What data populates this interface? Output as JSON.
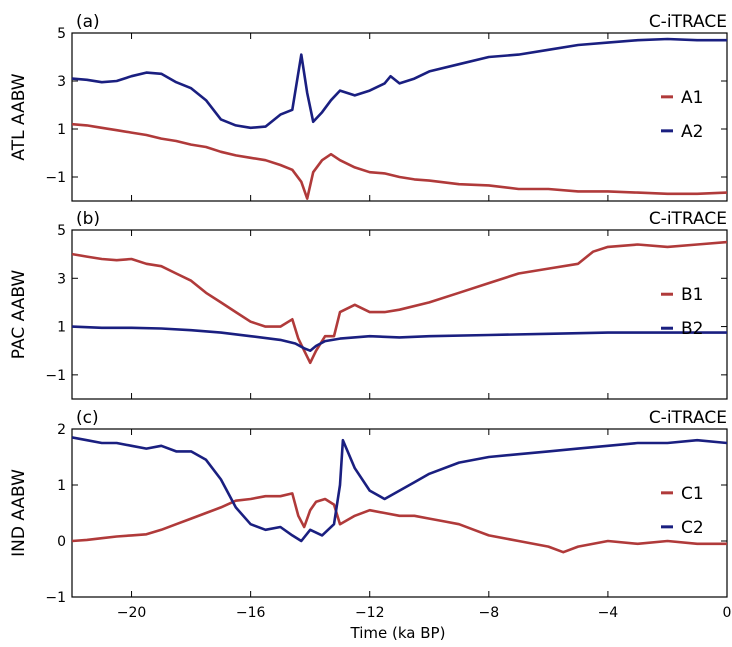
{
  "figure": {
    "xlabel": "Time (ka BP)",
    "xlim": [
      -22,
      0
    ],
    "xticks": [
      -20,
      -16,
      -12,
      -8,
      -4,
      0
    ],
    "xtick_labels": [
      "−20",
      "−16",
      "−12",
      "−8",
      "−4",
      "0"
    ]
  },
  "colors": {
    "red": "#b03a3a",
    "blue": "#1a1f80"
  },
  "chart_data": [
    {
      "type": "line",
      "panel_label": "(a)",
      "tag": "C-iTRACE",
      "ylabel": "ATL AABW",
      "ylim": [
        -2,
        5
      ],
      "yticks": [
        -1,
        1,
        3,
        5
      ],
      "ytick_labels": [
        "−1",
        "1",
        "3",
        "5"
      ],
      "legend_position": "right",
      "series": [
        {
          "name": "A1",
          "color": "red",
          "x": [
            -22,
            -21.5,
            -21,
            -20.5,
            -20,
            -19.5,
            -19,
            -18.5,
            -18,
            -17.5,
            -17,
            -16.5,
            -16,
            -15.5,
            -15,
            -14.6,
            -14.3,
            -14.1,
            -13.9,
            -13.6,
            -13.3,
            -13,
            -12.5,
            -12,
            -11.5,
            -11,
            -10.5,
            -10,
            -9,
            -8,
            -7,
            -6,
            -5,
            -4,
            -3,
            -2,
            -1,
            0
          ],
          "y": [
            1.2,
            1.15,
            1.05,
            0.95,
            0.85,
            0.75,
            0.6,
            0.5,
            0.35,
            0.25,
            0.05,
            -0.1,
            -0.2,
            -0.3,
            -0.5,
            -0.7,
            -1.2,
            -1.9,
            -0.8,
            -0.3,
            -0.05,
            -0.3,
            -0.6,
            -0.8,
            -0.85,
            -1.0,
            -1.1,
            -1.15,
            -1.3,
            -1.35,
            -1.5,
            -1.5,
            -1.6,
            -1.6,
            -1.65,
            -1.7,
            -1.7,
            -1.65
          ]
        },
        {
          "name": "A2",
          "color": "blue",
          "x": [
            -22,
            -21.5,
            -21,
            -20.5,
            -20,
            -19.5,
            -19,
            -18.5,
            -18,
            -17.5,
            -17,
            -16.5,
            -16,
            -15.5,
            -15,
            -14.6,
            -14.3,
            -14.1,
            -13.9,
            -13.6,
            -13.3,
            -13,
            -12.5,
            -12,
            -11.5,
            -11.3,
            -11,
            -10.5,
            -10,
            -9,
            -8,
            -7,
            -6,
            -5,
            -4,
            -3,
            -2,
            -1,
            0
          ],
          "y": [
            3.1,
            3.05,
            2.95,
            3.0,
            3.2,
            3.35,
            3.3,
            2.95,
            2.7,
            2.2,
            1.4,
            1.15,
            1.05,
            1.1,
            1.6,
            1.8,
            4.1,
            2.5,
            1.3,
            1.7,
            2.2,
            2.6,
            2.4,
            2.6,
            2.9,
            3.2,
            2.9,
            3.1,
            3.4,
            3.7,
            4.0,
            4.1,
            4.3,
            4.5,
            4.6,
            4.7,
            4.75,
            4.7,
            4.7
          ]
        }
      ]
    },
    {
      "type": "line",
      "panel_label": "(b)",
      "tag": "C-iTRACE",
      "ylabel": "PAC AABW",
      "ylim": [
        -2,
        5
      ],
      "yticks": [
        -1,
        1,
        3,
        5
      ],
      "ytick_labels": [
        "−1",
        "1",
        "3",
        "5"
      ],
      "legend_position": "right",
      "series": [
        {
          "name": "B1",
          "color": "red",
          "x": [
            -22,
            -21.5,
            -21,
            -20.5,
            -20,
            -19.5,
            -19,
            -18.5,
            -18,
            -17.5,
            -17,
            -16.5,
            -16,
            -15.5,
            -15,
            -14.6,
            -14.4,
            -14.2,
            -14.0,
            -13.8,
            -13.5,
            -13.2,
            -13,
            -12.5,
            -12,
            -11.5,
            -11,
            -10,
            -9,
            -8,
            -7,
            -6,
            -5,
            -4.5,
            -4,
            -3,
            -2,
            -1,
            0
          ],
          "y": [
            4.0,
            3.9,
            3.8,
            3.75,
            3.8,
            3.6,
            3.5,
            3.2,
            2.9,
            2.4,
            2.0,
            1.6,
            1.2,
            1.0,
            1.0,
            1.3,
            0.5,
            0.0,
            -0.5,
            0.0,
            0.6,
            0.6,
            1.6,
            1.9,
            1.6,
            1.6,
            1.7,
            2.0,
            2.4,
            2.8,
            3.2,
            3.4,
            3.6,
            4.1,
            4.3,
            4.4,
            4.3,
            4.4,
            4.5
          ]
        },
        {
          "name": "B2",
          "color": "blue",
          "x": [
            -22,
            -21,
            -20,
            -19,
            -18,
            -17,
            -16,
            -15,
            -14.5,
            -14.2,
            -14.0,
            -13.8,
            -13.5,
            -13,
            -12,
            -11,
            -10,
            -8,
            -6,
            -4,
            -2,
            0
          ],
          "y": [
            1.0,
            0.95,
            0.95,
            0.92,
            0.85,
            0.75,
            0.6,
            0.45,
            0.3,
            0.1,
            0.0,
            0.2,
            0.4,
            0.5,
            0.6,
            0.55,
            0.6,
            0.65,
            0.7,
            0.75,
            0.75,
            0.75
          ]
        }
      ]
    },
    {
      "type": "line",
      "panel_label": "(c)",
      "tag": "C-iTRACE",
      "ylabel": "IND AABW",
      "ylim": [
        -1,
        2
      ],
      "yticks": [
        -1,
        0,
        1,
        2
      ],
      "ytick_labels": [
        "−1",
        "0",
        "1",
        "2"
      ],
      "legend_position": "right",
      "series": [
        {
          "name": "C1",
          "color": "red",
          "x": [
            -22,
            -21.5,
            -21,
            -20.5,
            -20,
            -19.5,
            -19,
            -18.5,
            -18,
            -17.5,
            -17,
            -16.5,
            -16,
            -15.5,
            -15,
            -14.6,
            -14.4,
            -14.2,
            -14.0,
            -13.8,
            -13.5,
            -13.2,
            -13,
            -12.5,
            -12,
            -11.5,
            -11,
            -10.5,
            -10,
            -9.5,
            -9,
            -8.5,
            -8,
            -7,
            -6,
            -5.5,
            -5,
            -4,
            -3,
            -2,
            -1,
            0
          ],
          "y": [
            0.0,
            0.02,
            0.05,
            0.08,
            0.1,
            0.12,
            0.2,
            0.3,
            0.4,
            0.5,
            0.6,
            0.72,
            0.75,
            0.8,
            0.8,
            0.85,
            0.45,
            0.25,
            0.55,
            0.7,
            0.75,
            0.65,
            0.3,
            0.45,
            0.55,
            0.5,
            0.45,
            0.45,
            0.4,
            0.35,
            0.3,
            0.2,
            0.1,
            0.0,
            -0.1,
            -0.2,
            -0.1,
            0.0,
            -0.05,
            0.0,
            -0.05,
            -0.05
          ]
        },
        {
          "name": "C2",
          "color": "blue",
          "x": [
            -22,
            -21.5,
            -21,
            -20.5,
            -20,
            -19.5,
            -19,
            -18.5,
            -18,
            -17.5,
            -17,
            -16.5,
            -16,
            -15.5,
            -15,
            -14.6,
            -14.3,
            -14.0,
            -13.6,
            -13.2,
            -13.0,
            -12.9,
            -12.5,
            -12,
            -11.5,
            -11,
            -10.5,
            -10,
            -9,
            -8,
            -7,
            -6,
            -5,
            -4,
            -3,
            -2,
            -1,
            0
          ],
          "y": [
            1.85,
            1.8,
            1.75,
            1.75,
            1.7,
            1.65,
            1.7,
            1.6,
            1.6,
            1.45,
            1.1,
            0.6,
            0.3,
            0.2,
            0.25,
            0.1,
            0.0,
            0.2,
            0.1,
            0.3,
            1.0,
            1.8,
            1.3,
            0.9,
            0.75,
            0.9,
            1.05,
            1.2,
            1.4,
            1.5,
            1.55,
            1.6,
            1.65,
            1.7,
            1.75,
            1.75,
            1.8,
            1.75
          ]
        }
      ]
    }
  ]
}
